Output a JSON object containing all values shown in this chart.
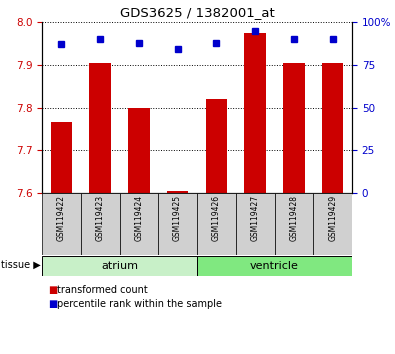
{
  "title": "GDS3625 / 1382001_at",
  "samples": [
    "GSM119422",
    "GSM119423",
    "GSM119424",
    "GSM119425",
    "GSM119426",
    "GSM119427",
    "GSM119428",
    "GSM119429"
  ],
  "red_values": [
    7.765,
    7.905,
    7.8,
    7.605,
    7.82,
    7.975,
    7.905,
    7.905
  ],
  "blue_values": [
    87,
    90,
    88,
    84,
    88,
    95,
    90,
    90
  ],
  "ylim_left": [
    7.6,
    8.0
  ],
  "ylim_right": [
    0,
    100
  ],
  "yticks_left": [
    7.6,
    7.7,
    7.8,
    7.9,
    8.0
  ],
  "yticks_right": [
    0,
    25,
    50,
    75,
    100
  ],
  "ytick_labels_right": [
    "0",
    "25",
    "50",
    "75",
    "100%"
  ],
  "base_value": 7.6,
  "tissue_groups": [
    {
      "label": "atrium",
      "start": 0,
      "end": 4,
      "color": "#c8f0c8"
    },
    {
      "label": "ventricle",
      "start": 4,
      "end": 8,
      "color": "#80e880"
    }
  ],
  "bar_color": "#cc0000",
  "dot_color": "#0000cc",
  "left_color": "#cc0000",
  "right_color": "#0000cc",
  "bg_color": "#ffffff",
  "tick_area_color": "#d0d0d0",
  "legend_red_label": "transformed count",
  "legend_blue_label": "percentile rank within the sample",
  "figsize": [
    3.95,
    3.54
  ],
  "dpi": 100
}
